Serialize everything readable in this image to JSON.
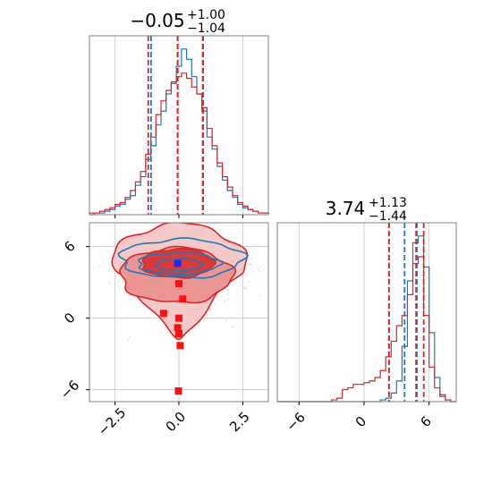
{
  "chart_data": {
    "type": "corner",
    "colors": {
      "series_a": "#1f77b4",
      "series_b": "#d62728",
      "grid": "#c8c8c8",
      "frame": "#808080"
    },
    "series": [
      {
        "color_key": "series_a"
      },
      {
        "color_key": "series_b"
      }
    ],
    "grid": true,
    "panels": [
      {
        "id": "hist_p1",
        "type": "histogram-step",
        "title": {
          "main": "−0.05",
          "sup": "+1.00",
          "sub": "−1.04"
        },
        "xlim": [
          -3.5,
          3.5
        ],
        "x_ticks": [
          -2.5,
          0.0,
          2.5
        ],
        "bin_edges": [
          -3.5,
          -3.3,
          -3.1,
          -2.9,
          -2.7,
          -2.5,
          -2.3,
          -2.1,
          -1.9,
          -1.7,
          -1.5,
          -1.3,
          -1.1,
          -0.9,
          -0.7,
          -0.5,
          -0.3,
          -0.1,
          0.1,
          0.3,
          0.5,
          0.7,
          0.9,
          1.1,
          1.3,
          1.5,
          1.7,
          1.9,
          2.1,
          2.3,
          2.5,
          2.7,
          2.9,
          3.1,
          3.3,
          3.5
        ],
        "counts": [
          [
            0,
            1,
            1,
            2,
            3,
            5,
            6,
            9,
            11,
            17,
            22,
            32,
            40,
            52,
            60,
            70,
            76,
            86,
            96,
            90,
            80,
            70,
            60,
            45,
            38,
            28,
            20,
            14,
            10,
            6,
            4,
            3,
            2,
            1,
            1
          ],
          [
            1,
            1,
            2,
            3,
            4,
            6,
            7,
            10,
            14,
            19,
            25,
            35,
            45,
            58,
            66,
            72,
            77,
            80,
            82,
            79,
            74,
            70,
            62,
            50,
            40,
            30,
            22,
            16,
            11,
            7,
            5,
            3,
            2,
            1,
            1
          ]
        ],
        "quantile_lines": [
          {
            "series": 0,
            "values": [
              -1.09,
              -0.05,
              0.95
            ]
          },
          {
            "series": 1,
            "values": [
              -1.2,
              -0.05,
              0.93
            ]
          }
        ]
      },
      {
        "id": "scatter_p1_p2",
        "type": "contour-2d",
        "xlim": [
          -3.5,
          3.5
        ],
        "ylim": [
          -7.0,
          8.0
        ],
        "x_ticks": [
          -2.5,
          0.0,
          2.5
        ],
        "x_tick_labels": [
          "−2.5",
          "0.0",
          "2.5"
        ],
        "y_ticks": [
          -6,
          0,
          6
        ],
        "y_tick_labels": [
          "−6",
          "0",
          "6"
        ],
        "contours": [
          {
            "series": 1,
            "style": "fill",
            "shape": "outer-plume",
            "center": [
              0.0,
              4.5
            ],
            "radii": [
              2.6,
              3.4
            ]
          },
          {
            "series": 1,
            "style": "fill",
            "shape": "ellipse",
            "center": [
              -0.1,
              3.6
            ],
            "radii": [
              2.2,
              2.3
            ]
          },
          {
            "series": 1,
            "style": "fill",
            "shape": "ellipse",
            "center": [
              -0.05,
              4.6
            ],
            "radii": [
              1.4,
              1.2
            ]
          },
          {
            "series": 0,
            "style": "line",
            "shape": "ellipse",
            "center": [
              0.1,
              5.0
            ],
            "radii": [
              2.4,
              1.6
            ]
          },
          {
            "series": 0,
            "style": "line",
            "shape": "ellipse",
            "center": [
              0.0,
              4.6
            ],
            "radii": [
              1.6,
              0.9
            ]
          },
          {
            "series": 0,
            "style": "line",
            "shape": "ellipse",
            "center": [
              0.0,
              4.5
            ],
            "radii": [
              0.9,
              0.5
            ]
          }
        ],
        "markers": [
          {
            "series": 0,
            "x": -0.05,
            "y": 4.6
          },
          {
            "series": 1,
            "x": 0.0,
            "y": 2.9
          },
          {
            "series": 1,
            "x": 0.15,
            "y": 1.6
          },
          {
            "series": 1,
            "x": -0.6,
            "y": 0.4
          },
          {
            "series": 1,
            "x": 0.0,
            "y": 0.0
          },
          {
            "series": 1,
            "x": -0.05,
            "y": -0.8
          },
          {
            "series": 1,
            "x": 0.0,
            "y": -1.3
          },
          {
            "series": 1,
            "x": 0.05,
            "y": -2.3
          },
          {
            "series": 1,
            "x": -0.02,
            "y": -6.1
          }
        ]
      },
      {
        "id": "hist_p2",
        "type": "histogram-step",
        "title": {
          "main": "3.74",
          "sup": "+1.13",
          "sub": "−1.44"
        },
        "xlim": [
          -8.0,
          8.5
        ],
        "x_ticks": [
          -6,
          0,
          6
        ],
        "x_tick_labels": [
          "−6",
          "0",
          "6"
        ],
        "bin_edges": [
          -8.0,
          -7.5,
          -7.0,
          -6.5,
          -6.0,
          -5.5,
          -5.0,
          -4.5,
          -4.0,
          -3.5,
          -3.0,
          -2.5,
          -2.0,
          -1.5,
          -1.0,
          -0.5,
          0.0,
          0.5,
          1.0,
          1.5,
          2.0,
          2.5,
          3.0,
          3.5,
          4.0,
          4.5,
          5.0,
          5.5,
          6.0,
          6.5,
          7.0,
          7.5,
          8.0,
          8.5
        ],
        "counts": [
          [
            0,
            0,
            0,
            0,
            0,
            0,
            0,
            0,
            0,
            0,
            0,
            0,
            0,
            0,
            0,
            0,
            0,
            0,
            0,
            1,
            2,
            5,
            12,
            32,
            70,
            92,
            96,
            78,
            40,
            14,
            4,
            1,
            0
          ],
          [
            0,
            0,
            0,
            0,
            0,
            0,
            0,
            0,
            0,
            0,
            1,
            2,
            7,
            8,
            10,
            10,
            11,
            12,
            14,
            18,
            26,
            35,
            44,
            50,
            62,
            80,
            84,
            50,
            20,
            8,
            3,
            1,
            0
          ]
        ],
        "quantile_lines": [
          {
            "series": 0,
            "values": [
              2.3,
              3.74,
              4.87
            ]
          },
          {
            "series": 1,
            "values": [
              2.3,
              4.8,
              5.5
            ]
          }
        ]
      }
    ]
  }
}
